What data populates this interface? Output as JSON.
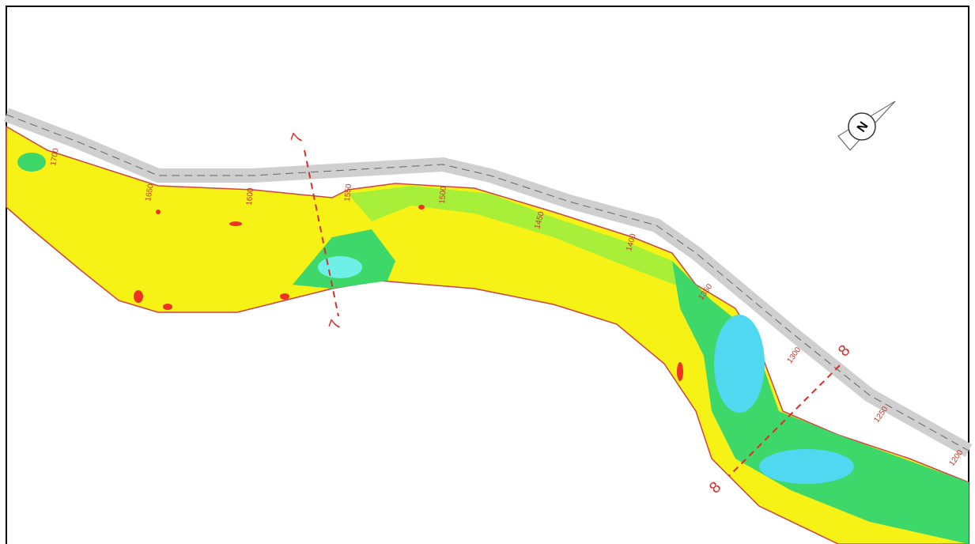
{
  "north_label": "N",
  "sections": [
    {
      "ends": [
        "7",
        "7"
      ]
    },
    {
      "ends": [
        "8",
        "8"
      ]
    }
  ],
  "chainages": [
    "1700",
    "1650",
    "1600",
    "1550",
    "1500",
    "1450",
    "1400",
    "1350",
    "1300",
    "1250",
    "1200"
  ]
}
